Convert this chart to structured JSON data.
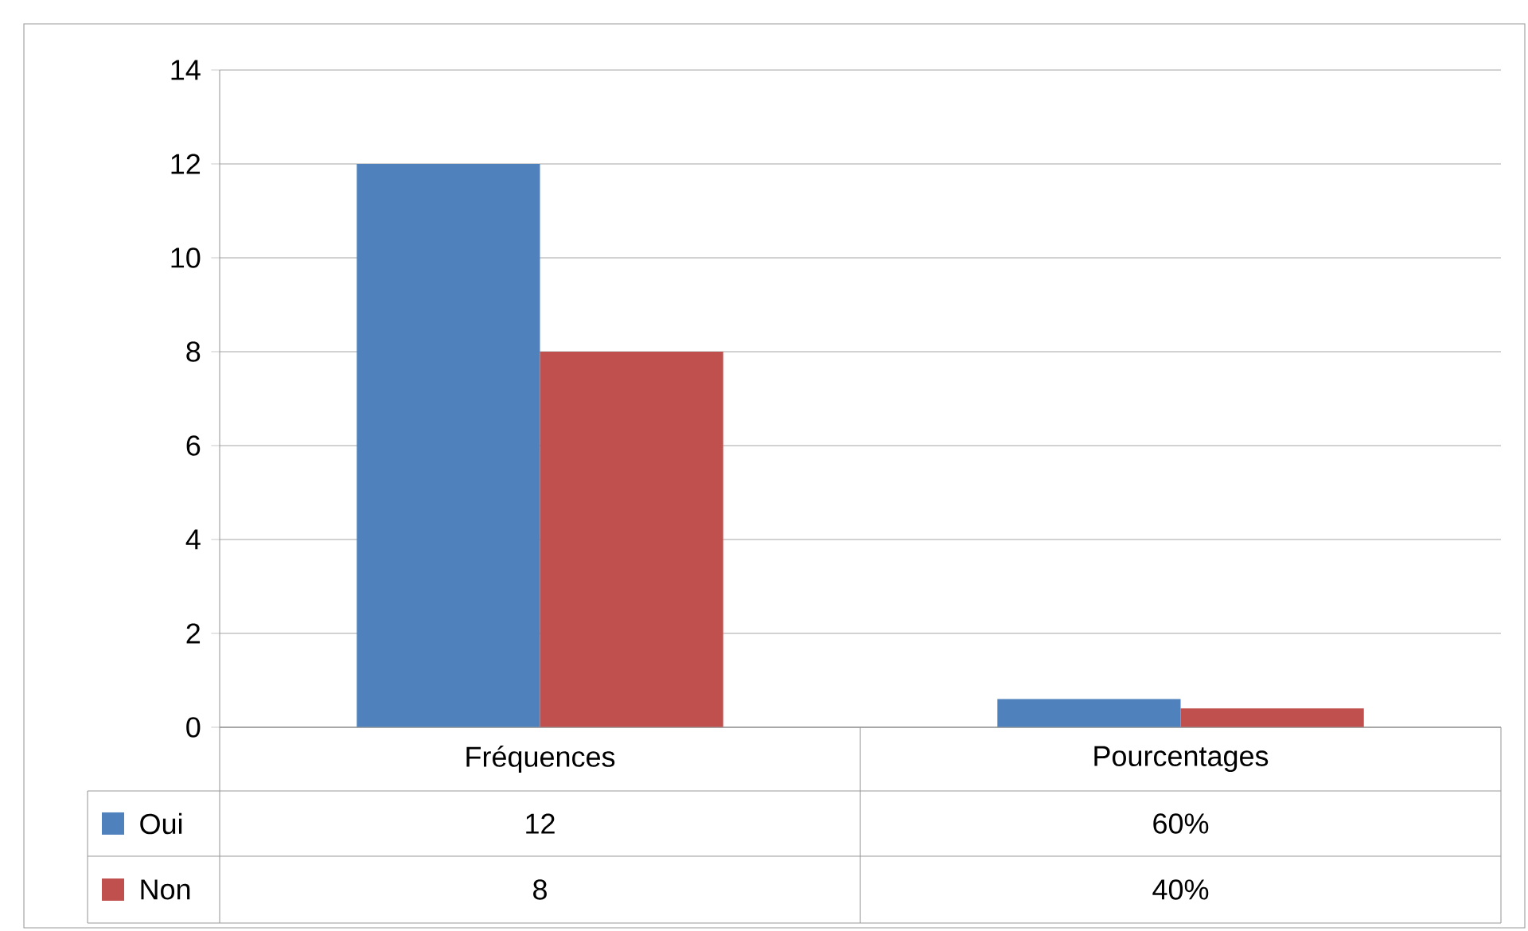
{
  "chart_data": {
    "type": "bar",
    "categories": [
      "Fréquences",
      "Pourcentages"
    ],
    "series": [
      {
        "name": "Oui",
        "color": "#4f81bd",
        "values": [
          12,
          0.6
        ],
        "value_labels": [
          "12",
          "60%"
        ]
      },
      {
        "name": "Non",
        "color": "#c0504d",
        "values": [
          8,
          0.4
        ],
        "value_labels": [
          "8",
          "40%"
        ]
      }
    ],
    "ylim": [
      0,
      14
    ],
    "yticks": [
      0,
      2,
      4,
      6,
      8,
      10,
      12,
      14
    ],
    "grid": "y",
    "legend": "bottom"
  }
}
